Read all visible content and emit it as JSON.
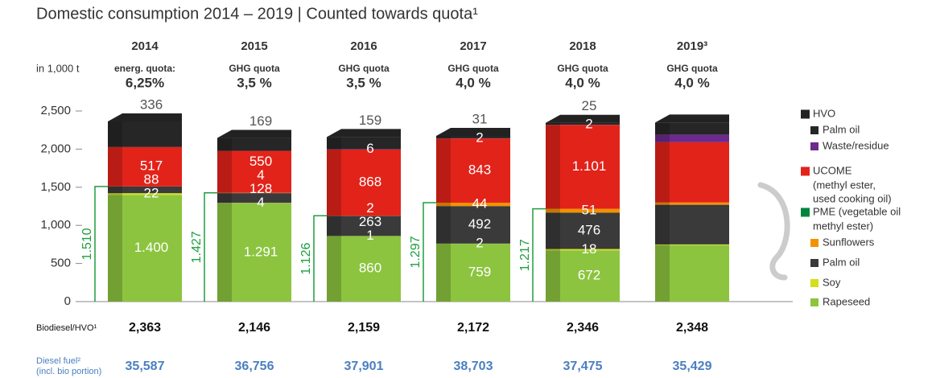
{
  "chart_data": {
    "type": "stacked_bar",
    "title": "Domestic consumption 2014 – 2019 | Counted towards quota¹",
    "y_label": "in 1,000 t",
    "categories": [
      "2014",
      "2015",
      "2016",
      "2017",
      "2018",
      "2019³"
    ],
    "quota": [
      {
        "label": "energ. quota:",
        "value": "6,25%"
      },
      {
        "label": "GHG quota",
        "value": "3,5 %"
      },
      {
        "label": "GHG quota",
        "value": "3,5 %"
      },
      {
        "label": "GHG quota",
        "value": "4,0 %"
      },
      {
        "label": "GHG quota",
        "value": "4,0 %"
      },
      {
        "label": "GHG quota",
        "value": "4,0 %"
      }
    ],
    "ylim": [
      0,
      2500
    ],
    "yticks": [
      0,
      500,
      {
        "value": 1000,
        "label": "1,000"
      },
      {
        "value": 1500,
        "label": "1,500"
      },
      {
        "value": 2000,
        "label": "2,000"
      },
      {
        "value": 2500,
        "label": "2,500"
      }
    ],
    "series": [
      {
        "name": "Rapeseed",
        "color": "#8cc43f",
        "values": [
          1400,
          1291,
          860,
          759,
          672,
          740
        ],
        "value_labels": [
          "1.400",
          "1.291",
          "860",
          "759",
          "672",
          null
        ]
      },
      {
        "name": "Soy",
        "color": "#d3df1a",
        "values": [
          22,
          4,
          1,
          2,
          18,
          10
        ],
        "value_labels": [
          "22",
          "4",
          "1",
          "2",
          "18",
          null
        ]
      },
      {
        "name": "Palm oil",
        "color": "#3a3a3a",
        "values": [
          88,
          128,
          263,
          492,
          476,
          520
        ],
        "value_labels": [
          "88",
          "128",
          "263",
          "492",
          "476",
          null
        ]
      },
      {
        "name": "Sunflowers",
        "color": "#f39200",
        "values": [
          0,
          4,
          2,
          44,
          51,
          30
        ],
        "value_labels": [
          null,
          "4",
          "2",
          "44",
          "51",
          null
        ]
      },
      {
        "name": "UCOME",
        "color": "#e2231a",
        "values": [
          517,
          550,
          868,
          843,
          1101,
          790
        ],
        "value_labels": [
          "517",
          "550",
          "868",
          "843",
          "1.101",
          null
        ]
      },
      {
        "name": "Waste/residue",
        "color": "#6b2a8c",
        "values": [
          0,
          0,
          6,
          2,
          2,
          100
        ],
        "value_labels": [
          null,
          null,
          "6",
          "2",
          "2",
          null
        ]
      },
      {
        "name": "Palm oil",
        "color": "#262626",
        "values": [
          336,
          169,
          159,
          31,
          25,
          158
        ],
        "value_labels": [
          "336",
          "169",
          "159",
          "31",
          "25",
          null
        ]
      }
    ],
    "pme_totals": {
      "values": [
        1510,
        1427,
        1126,
        1297,
        1217,
        null
      ],
      "value_labels": [
        "1.510",
        "1.427",
        "1.126",
        "1.297",
        "1.217",
        null
      ],
      "color": "#1e9e3e"
    },
    "legend_groups": [
      {
        "name": "HVO",
        "color": "#222222"
      },
      {
        "name": [
          "PME (vegetable oil",
          "methyl ester)"
        ],
        "color": "#00843d"
      }
    ],
    "ucome_note": [
      "(methyl ester,",
      "used cooking oil)"
    ],
    "totals": {
      "label": "Biodiesel/HVO¹",
      "values": [
        2363,
        2146,
        2159,
        2172,
        2346,
        2348
      ],
      "value_labels": [
        "2,363",
        "2,146",
        "2,159",
        "2,172",
        "2,346",
        "2,348"
      ]
    },
    "diesel": {
      "label": [
        "Diesel fuel²",
        "(incl. bio portion)"
      ],
      "color": "#4a7fc1",
      "values": [
        35587,
        36756,
        37901,
        38703,
        37475,
        35429
      ],
      "value_labels": [
        "35,587",
        "36,756",
        "37,901",
        "38,703",
        "37,475",
        "35,429"
      ]
    }
  }
}
